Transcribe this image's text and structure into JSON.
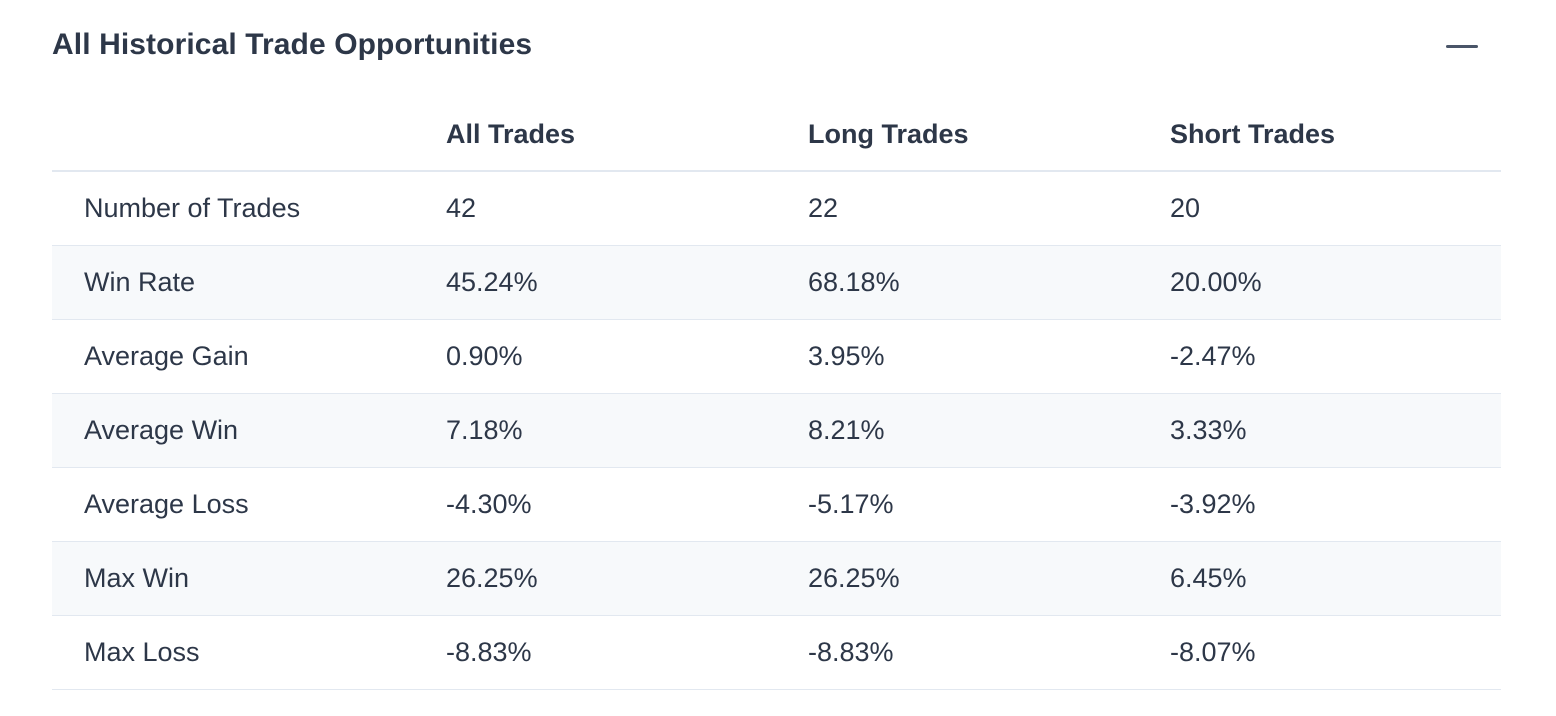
{
  "panel": {
    "title": "All Historical Trade Opportunities",
    "collapse_icon": "minus-icon"
  },
  "table": {
    "headers": [
      "",
      "All Trades",
      "Long Trades",
      "Short Trades"
    ],
    "rows": [
      {
        "label": "Number of Trades",
        "all": "42",
        "long": "22",
        "short": "20"
      },
      {
        "label": "Win Rate",
        "all": "45.24%",
        "long": "68.18%",
        "short": "20.00%"
      },
      {
        "label": "Average Gain",
        "all": "0.90%",
        "long": "3.95%",
        "short": "-2.47%"
      },
      {
        "label": "Average Win",
        "all": "7.18%",
        "long": "8.21%",
        "short": "3.33%"
      },
      {
        "label": "Average Loss",
        "all": "-4.30%",
        "long": "-5.17%",
        "short": "-3.92%"
      },
      {
        "label": "Max Win",
        "all": "26.25%",
        "long": "26.25%",
        "short": "6.45%"
      },
      {
        "label": "Max Loss",
        "all": "-8.83%",
        "long": "-8.83%",
        "short": "-8.07%"
      }
    ]
  },
  "colors": {
    "text": "#2d3748",
    "row_stripe": "#f7f9fb",
    "divider": "#e2e8f0",
    "icon": "#4a5568"
  }
}
